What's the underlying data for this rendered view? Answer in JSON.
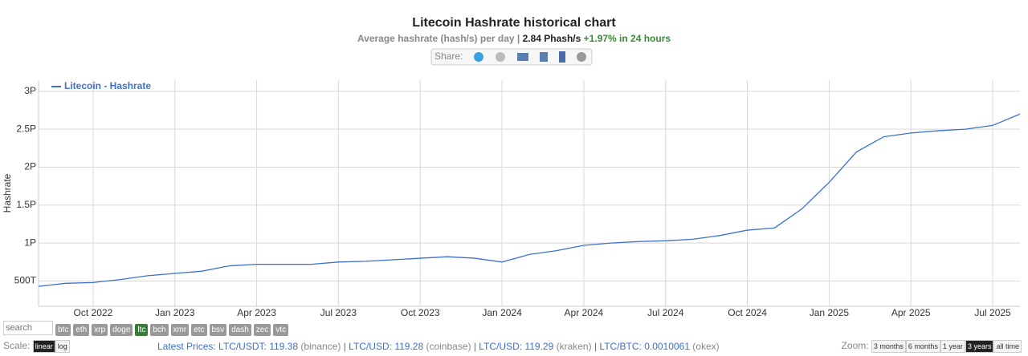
{
  "chart_data": {
    "type": "line",
    "title": "Litecoin Hashrate historical chart",
    "subtitle": {
      "text": "Average hashrate (hash/s) per day |",
      "current": "2.84 Phash/s",
      "change": "+1.97% in 24 hours"
    },
    "y_label": "Hashrate",
    "x": [
      "2022-08",
      "2022-09",
      "2022-10",
      "2022-11",
      "2022-12",
      "2023-01",
      "2023-02",
      "2023-03",
      "2023-04",
      "2023-05",
      "2023-06",
      "2023-07",
      "2023-08",
      "2023-09",
      "2023-10",
      "2023-11",
      "2023-12",
      "2024-01",
      "2024-02",
      "2024-03",
      "2024-04",
      "2024-05",
      "2024-06",
      "2024-07",
      "2024-08",
      "2024-09",
      "2024-10",
      "2024-11",
      "2024-12",
      "2025-01",
      "2025-02",
      "2025-03",
      "2025-04",
      "2025-05",
      "2025-06",
      "2025-07",
      "2025-08"
    ],
    "series": [
      {
        "name": "Litecoin - Hashrate",
        "color": "#3d6fcc",
        "values": [
          430000000000000,
          470000000000000,
          480000000000000,
          520000000000000,
          570000000000000,
          600000000000000,
          630000000000000,
          700000000000000,
          720000000000000,
          720000000000000,
          720000000000000,
          750000000000000,
          760000000000000,
          780000000000000,
          800000000000000,
          820000000000000,
          800000000000000,
          750000000000000,
          850000000000000,
          900000000000000,
          970000000000000,
          1000000000000000,
          1020000000000000,
          1030000000000000,
          1050000000000000,
          1100000000000000,
          1170000000000000,
          1200000000000000,
          1450000000000000,
          1800000000000000,
          2200000000000000,
          2400000000000000,
          2450000000000000,
          2480000000000000,
          2500000000000000,
          2550000000000000,
          2700000000000000
        ]
      }
    ],
    "xlim": [
      "2022-08",
      "2025-08"
    ],
    "xticks": [
      {
        "value": "2022-10",
        "label": "Oct 2022"
      },
      {
        "value": "2023-01",
        "label": "Jan 2023"
      },
      {
        "value": "2023-04",
        "label": "Apr 2023"
      },
      {
        "value": "2023-07",
        "label": "Jul 2023"
      },
      {
        "value": "2023-10",
        "label": "Oct 2023"
      },
      {
        "value": "2024-01",
        "label": "Jan 2024"
      },
      {
        "value": "2024-04",
        "label": "Apr 2024"
      },
      {
        "value": "2024-07",
        "label": "Jul 2024"
      },
      {
        "value": "2024-10",
        "label": "Oct 2024"
      },
      {
        "value": "2025-01",
        "label": "Jan 2025"
      },
      {
        "value": "2025-04",
        "label": "Apr 2025"
      },
      {
        "value": "2025-07",
        "label": "Jul 2025"
      }
    ],
    "ylim": [
      167000000000000,
      3146000000000000
    ],
    "yticks": [
      {
        "value": 500000000000000,
        "label": "500T"
      },
      {
        "value": 1000000000000000,
        "label": "1P"
      },
      {
        "value": 1500000000000000,
        "label": "1.5P"
      },
      {
        "value": 2000000000000000,
        "label": "2P"
      },
      {
        "value": 2500000000000000,
        "label": "2.5P"
      },
      {
        "value": 3000000000000000,
        "label": "3P"
      }
    ],
    "grid": true
  },
  "page": {
    "share": "Share:",
    "search": "search",
    "coins": [
      "btc",
      "eth",
      "xrp",
      "doge",
      "ltc",
      "bch",
      "xmr",
      "etc",
      "bsv",
      "dash",
      "zec",
      "vtc"
    ],
    "selected_coin": "ltc",
    "scale_label": "Scale:",
    "scales": [
      "linear",
      "log"
    ],
    "selected_scale": "linear",
    "prices_label": "Latest Prices:",
    "prices": [
      {
        "pair": "LTC/USDT:",
        "price": "119.38",
        "exchange": "(binance)"
      },
      {
        "pair": "LTC/USD:",
        "price": "119.28",
        "exchange": "(coinbase)"
      },
      {
        "pair": "LTC/USD:",
        "price": "119.29",
        "exchange": "(kraken)"
      },
      {
        "pair": "LTC/BTC:",
        "price": "0.0010061",
        "exchange": "(okex)"
      }
    ],
    "zoom_label": "Zoom:",
    "zooms": [
      "3 months",
      "6 months",
      "1 year",
      "3 years",
      "all time"
    ],
    "selected_zoom": "3 years"
  }
}
